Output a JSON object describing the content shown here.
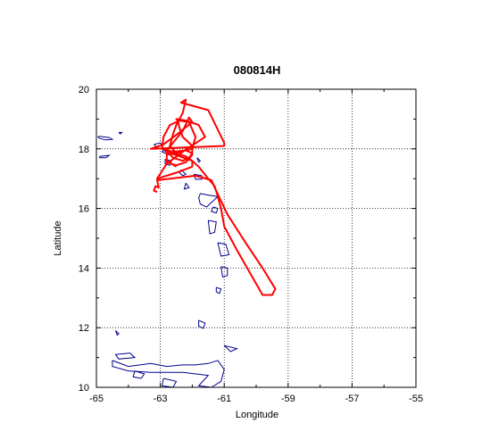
{
  "chart_data": {
    "type": "line",
    "title": "080814H",
    "xlabel": "Longitude",
    "ylabel": "Latitude",
    "xlim": [
      -65,
      -55
    ],
    "ylim": [
      10,
      20
    ],
    "x_ticks": [
      "-65",
      "-63",
      "-61",
      "-59",
      "-57",
      "-55"
    ],
    "y_ticks": [
      "10",
      "12",
      "14",
      "16",
      "18",
      "20"
    ],
    "grid": true,
    "colors": {
      "track": "#ff0000",
      "coastline": "#00008b",
      "grid": "#000000"
    },
    "series": [
      {
        "role": "flight-track",
        "x": [
          -63.1,
          -63.2,
          -63.15,
          -63.05,
          -63.1,
          -61.9,
          -61.4,
          -61.3,
          -60.9,
          -60.3,
          -59.8,
          -59.4,
          -59.5,
          -59.8,
          -60.6,
          -61.0,
          -61.1,
          -61.2,
          -61.3,
          -61.5,
          -61.8,
          -62.0,
          -62.2,
          -62.5,
          -62.7,
          -62.6,
          -62.5,
          -62.3,
          -62.2,
          -62.35,
          -61.5,
          -61.0,
          -61.0,
          -63.3,
          -62.9,
          -62.4,
          -62.0,
          -62.1,
          -62.3,
          -62.8,
          -62.6,
          -62.3,
          -62.1,
          -62.0,
          -62.2,
          -62.6,
          -62.95,
          -62.9,
          -62.7,
          -62.4,
          -62.1,
          -61.9,
          -62.0,
          -62.8,
          -62.8,
          -62.5,
          -62.2,
          -62.0,
          -62.0,
          -62.3,
          -62.4,
          -62.45,
          -62.5,
          -62.2,
          -61.8,
          -61.6,
          -62.3,
          -62.8,
          -63.1,
          -62.5,
          -62.0,
          -62.0,
          -62.8,
          -62.8,
          -62.5
        ],
        "y": [
          16.55,
          16.6,
          16.75,
          16.7,
          16.95,
          17.1,
          16.95,
          16.7,
          15.8,
          14.8,
          14.0,
          13.3,
          13.1,
          13.1,
          14.6,
          15.4,
          16.0,
          16.4,
          16.75,
          17.0,
          17.4,
          17.6,
          17.75,
          17.85,
          18.1,
          18.5,
          18.8,
          19.2,
          19.65,
          19.55,
          19.3,
          18.2,
          18.1,
          18.0,
          18.15,
          18.55,
          18.9,
          19.05,
          18.6,
          17.95,
          17.7,
          17.6,
          17.7,
          17.85,
          17.95,
          17.9,
          18.0,
          18.4,
          18.8,
          18.95,
          18.9,
          18.4,
          18.0,
          17.8,
          17.55,
          17.45,
          17.55,
          17.8,
          18.1,
          18.4,
          18.7,
          18.95,
          19.0,
          18.95,
          18.8,
          18.4,
          17.9,
          17.5,
          17.0,
          17.2,
          17.4,
          17.6,
          17.9,
          17.6,
          17.4
        ]
      }
    ]
  }
}
